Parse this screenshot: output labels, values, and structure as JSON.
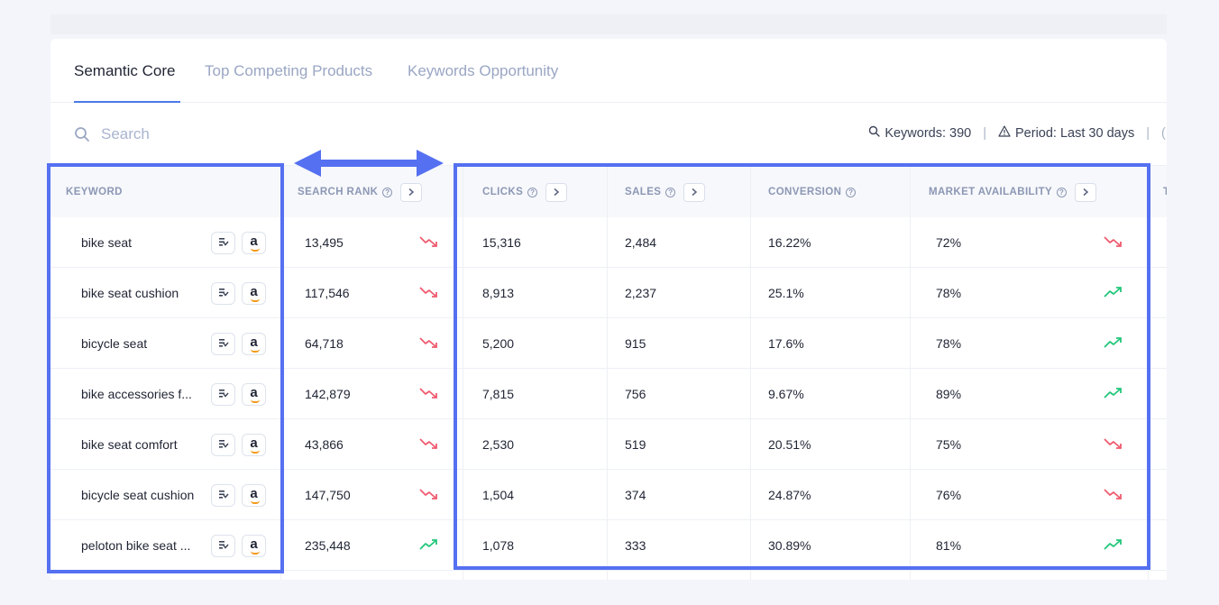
{
  "tabs": [
    {
      "label": "Semantic Core",
      "active": true
    },
    {
      "label": "Top Competing Products",
      "active": false
    },
    {
      "label": "Keywords Opportunity",
      "active": false
    }
  ],
  "search": {
    "placeholder": "Search",
    "value": ""
  },
  "stats": {
    "keywords": "Keywords: 390",
    "period": "Period: Last 30 days"
  },
  "table": {
    "headers": {
      "keyword": "KEYWORD",
      "search_rank": "SEARCH RANK",
      "clicks": "CLICKS",
      "sales": "SALES",
      "conversion": "CONVERSION",
      "market_availability": "MARKET AVAILABILITY"
    },
    "rows": [
      {
        "keyword": "bike seat",
        "search_rank": "13,495",
        "rank_trend": "down",
        "clicks": "15,316",
        "sales": "2,484",
        "conversion": "16.22%",
        "market": "72%",
        "market_trend": "down"
      },
      {
        "keyword": "bike seat cushion",
        "search_rank": "117,546",
        "rank_trend": "down",
        "clicks": "8,913",
        "sales": "2,237",
        "conversion": "25.1%",
        "market": "78%",
        "market_trend": "up"
      },
      {
        "keyword": "bicycle seat",
        "search_rank": "64,718",
        "rank_trend": "down",
        "clicks": "5,200",
        "sales": "915",
        "conversion": "17.6%",
        "market": "78%",
        "market_trend": "up"
      },
      {
        "keyword": "bike accessories f...",
        "search_rank": "142,879",
        "rank_trend": "down",
        "clicks": "7,815",
        "sales": "756",
        "conversion": "9.67%",
        "market": "89%",
        "market_trend": "up"
      },
      {
        "keyword": "bike seat comfort",
        "search_rank": "43,866",
        "rank_trend": "down",
        "clicks": "2,530",
        "sales": "519",
        "conversion": "20.51%",
        "market": "75%",
        "market_trend": "down"
      },
      {
        "keyword": "bicycle seat cushion",
        "search_rank": "147,750",
        "rank_trend": "down",
        "clicks": "1,504",
        "sales": "374",
        "conversion": "24.87%",
        "market": "76%",
        "market_trend": "down"
      },
      {
        "keyword": "peloton bike seat ...",
        "search_rank": "235,448",
        "rank_trend": "up",
        "clicks": "1,078",
        "sales": "333",
        "conversion": "30.89%",
        "market": "81%",
        "market_trend": "up"
      }
    ]
  },
  "icons": {
    "search": "search-icon",
    "warning": "warning-triangle-icon",
    "help": "help-circle-icon",
    "expand": "chevron-right-icon",
    "keyword_tool": "keyword-tool-icon",
    "amazon": "amazon-icon",
    "trend_down": "trend-down-icon",
    "trend_up": "trend-up-icon"
  },
  "colors": {
    "accent": "#4b79e8",
    "annotation": "#5570f1",
    "trend_up": "#22c77a",
    "trend_down": "#ef5b6f",
    "amazon_smile": "#f39a1b"
  }
}
